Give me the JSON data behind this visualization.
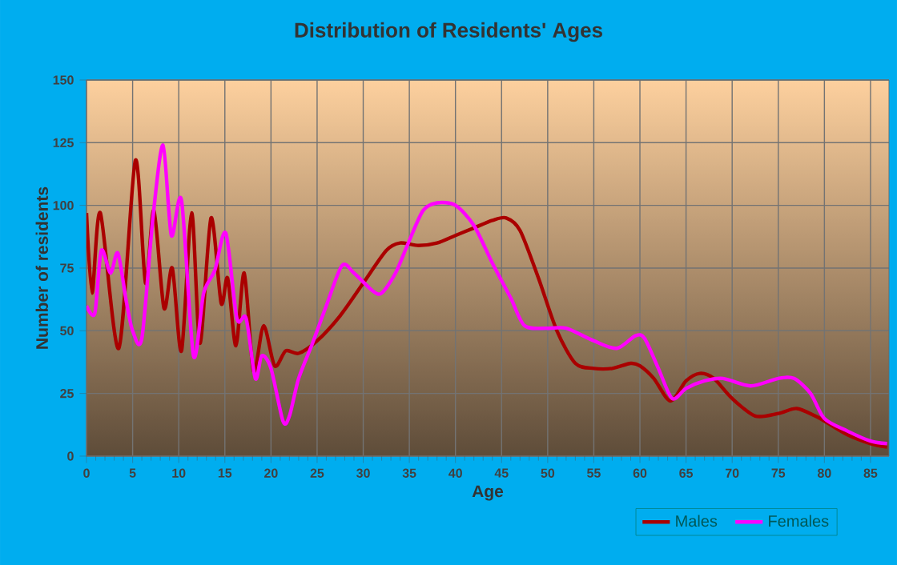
{
  "chart_data": {
    "type": "line",
    "title": "Distribution of Residents' Ages",
    "xlabel": "Age",
    "ylabel": "Number of residents",
    "xlim": [
      0,
      87
    ],
    "ylim": [
      0,
      150
    ],
    "xticks": [
      0,
      5,
      10,
      15,
      20,
      25,
      30,
      35,
      40,
      45,
      50,
      55,
      60,
      65,
      70,
      75,
      80,
      85
    ],
    "yticks": [
      0,
      25,
      50,
      75,
      100,
      125,
      150
    ],
    "grid": true,
    "legend": "bottom",
    "marker": "none",
    "line_style": "solid",
    "series": [
      {
        "name": "Males",
        "color": "#aa0000",
        "x": [
          0,
          0.6,
          1.5,
          3.5,
          5.3,
          6.4,
          7.3,
          8.4,
          9.3,
          10.3,
          11.4,
          12.3,
          13.5,
          14.6,
          15.3,
          16.2,
          17.1,
          18.1,
          19.2,
          20.4,
          21.6,
          23,
          25,
          27.5,
          30,
          32.5,
          34,
          36,
          38,
          40,
          42,
          44,
          45.5,
          47,
          49,
          51,
          53,
          55,
          57,
          59,
          60,
          61.5,
          63.3,
          65,
          66.5,
          68,
          70,
          72.5,
          75,
          77,
          79,
          80,
          82.5,
          85,
          86.8
        ],
        "values": [
          97,
          65,
          97,
          43,
          118,
          69,
          98,
          59,
          75,
          42,
          97,
          45,
          95,
          61,
          71,
          44,
          73,
          34,
          52,
          36,
          42,
          41,
          46,
          56,
          69,
          82,
          85,
          84,
          85,
          88,
          91,
          94,
          95,
          90,
          71,
          50,
          37,
          35,
          35,
          37,
          36,
          31,
          22,
          30,
          33,
          31,
          23,
          16,
          17,
          19,
          16,
          14,
          8.5,
          5,
          3.6
        ]
      },
      {
        "name": "Females",
        "color": "#ff00ff",
        "x": [
          0,
          0.9,
          1.6,
          2.6,
          3.4,
          4.3,
          5,
          6,
          7.2,
          8.3,
          9.2,
          10.3,
          11.6,
          12.7,
          13.9,
          15.1,
          16.3,
          17.3,
          18.3,
          19,
          20,
          21.3,
          22,
          23,
          24.5,
          26,
          27.7,
          29,
          31,
          32,
          33.5,
          35,
          36.5,
          38,
          40,
          42,
          44,
          46,
          47.5,
          50,
          52,
          55,
          57.5,
          59.5,
          60.5,
          62,
          63.5,
          65,
          67,
          69,
          72,
          75,
          76.7,
          78.5,
          80,
          82.5,
          85,
          86.8
        ],
        "values": [
          60,
          57,
          82,
          73,
          81,
          62,
          50,
          47,
          95,
          124,
          88,
          102,
          40,
          65,
          74,
          89,
          55,
          55,
          31,
          40,
          35,
          14,
          16,
          31,
          45,
          60,
          76,
          73,
          66,
          65,
          73,
          86,
          98,
          101,
          100,
          92,
          77,
          63,
          52,
          51,
          51,
          46,
          43,
          48,
          47,
          35,
          23,
          27,
          30,
          31,
          28,
          31,
          31,
          25,
          15,
          10,
          6,
          5
        ]
      }
    ]
  }
}
